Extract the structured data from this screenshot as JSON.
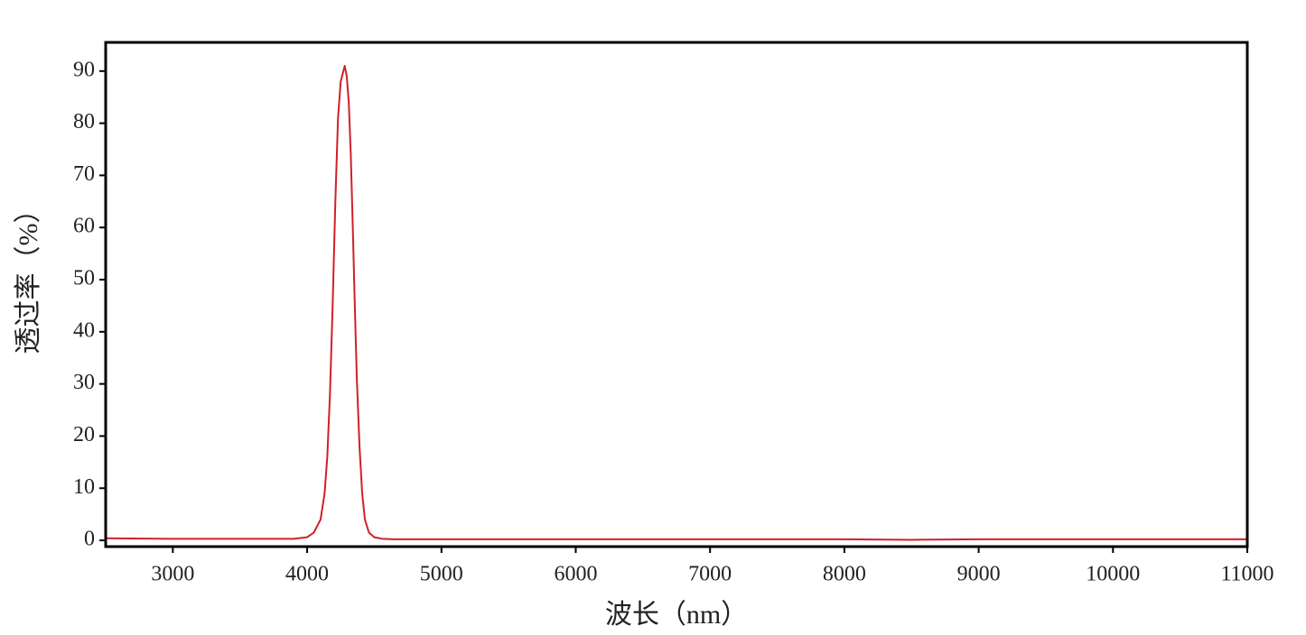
{
  "chart_data": {
    "type": "line",
    "xlabel": "波长（nm）",
    "ylabel": "透过率（%）",
    "x": [
      2500,
      3000,
      3500,
      3900,
      4000,
      4050,
      4100,
      4130,
      4150,
      4170,
      4190,
      4210,
      4230,
      4250,
      4265,
      4280,
      4295,
      4310,
      4325,
      4340,
      4355,
      4370,
      4390,
      4410,
      4430,
      4460,
      4500,
      4560,
      4650,
      5000,
      6000,
      7000,
      8000,
      8500,
      9000,
      10000,
      11000
    ],
    "values": [
      0.4,
      0.3,
      0.3,
      0.3,
      0.6,
      1.5,
      4,
      9,
      16,
      28,
      45,
      65,
      81,
      88,
      89.5,
      91,
      89,
      84,
      74,
      60,
      45,
      31,
      18,
      9,
      4,
      1.5,
      0.6,
      0.3,
      0.2,
      0.2,
      0.2,
      0.2,
      0.2,
      0.1,
      0.2,
      0.2,
      0.2
    ],
    "color": "#d0202a",
    "xlim": [
      2500,
      11000
    ],
    "ylim": [
      -1.2,
      95.5
    ],
    "xticks": [
      3000,
      4000,
      5000,
      6000,
      7000,
      8000,
      9000,
      10000,
      11000
    ],
    "yticks": [
      0,
      10,
      20,
      30,
      40,
      50,
      60,
      70,
      80,
      90
    ]
  }
}
